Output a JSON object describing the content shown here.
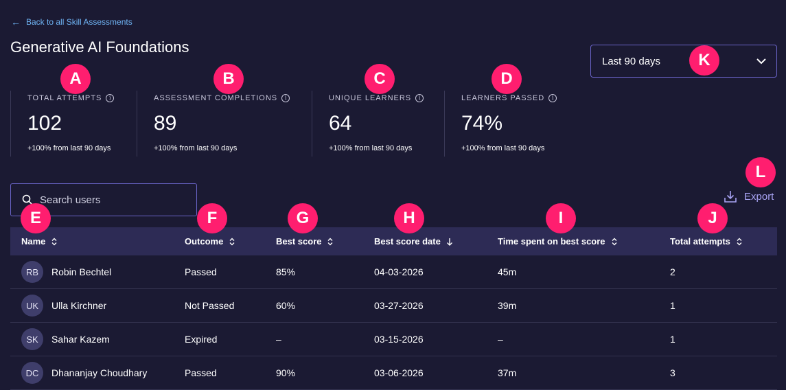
{
  "back_link": {
    "label": "Back to all Skill Assessments"
  },
  "page_title": "Generative AI Foundations",
  "date_filter": {
    "selected": "Last 90 days"
  },
  "stats": [
    {
      "label": "TOTAL ATTEMPTS",
      "value": "102",
      "change": "+100% from last 90 days"
    },
    {
      "label": "ASSESSMENT COMPLETIONS",
      "value": "89",
      "change": "+100% from last 90 days"
    },
    {
      "label": "UNIQUE LEARNERS",
      "value": "64",
      "change": "+100% from last 90 days"
    },
    {
      "label": "LEARNERS PASSED",
      "value": "74%",
      "change": "+100% from last 90 days"
    }
  ],
  "search": {
    "placeholder": "Search users"
  },
  "export_label": "Export",
  "table": {
    "columns": [
      "Name",
      "Outcome",
      "Best score",
      "Best score date",
      "Time spent on best score",
      "Total attempts"
    ],
    "rows": [
      {
        "initials": "RB",
        "name": "Robin Bechtel",
        "outcome": "Passed",
        "best_score": "85%",
        "date": "04-03-2026",
        "time": "45m",
        "attempts": "2"
      },
      {
        "initials": "UK",
        "name": "Ulla Kirchner",
        "outcome": "Not Passed",
        "best_score": "60%",
        "date": "03-27-2026",
        "time": "39m",
        "attempts": "1"
      },
      {
        "initials": "SK",
        "name": "Sahar Kazem",
        "outcome": "Expired",
        "best_score": "–",
        "date": "03-15-2026",
        "time": "–",
        "attempts": "1"
      },
      {
        "initials": "DC",
        "name": "Dhananjay Choudhary",
        "outcome": "Passed",
        "best_score": "90%",
        "date": "03-06-2026",
        "time": "37m",
        "attempts": "3"
      }
    ]
  },
  "annotation_badges": [
    "A",
    "B",
    "C",
    "D",
    "E",
    "F",
    "G",
    "H",
    "I",
    "J",
    "K",
    "L"
  ],
  "colors": {
    "background": "#1b1a33",
    "accent": "#6a64c8",
    "badge": "#ff1e6f",
    "link": "#6fb4f5",
    "header_row": "#2d2b55"
  }
}
